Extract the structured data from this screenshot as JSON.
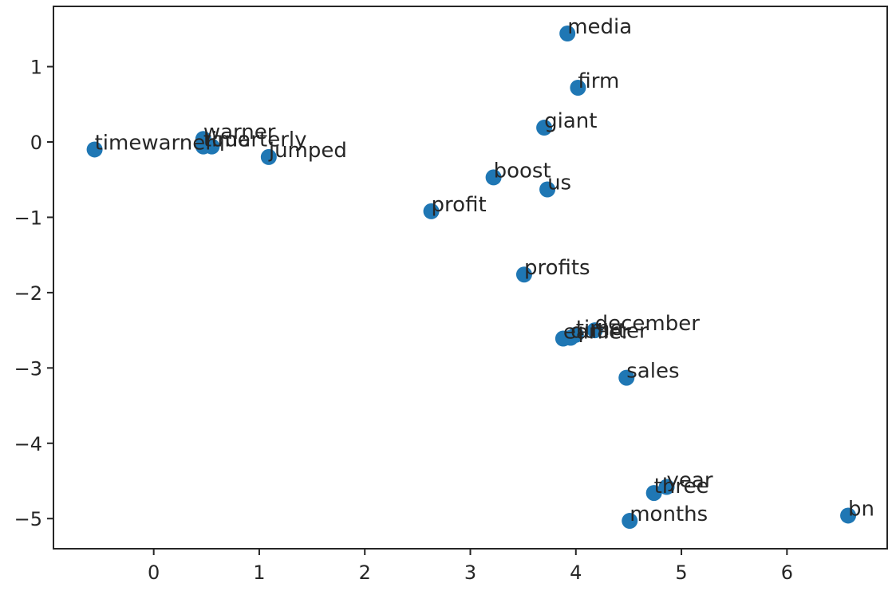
{
  "chart_data": {
    "type": "scatter",
    "title": "",
    "xlabel": "",
    "ylabel": "",
    "xlim": [
      -0.95,
      6.95
    ],
    "ylim": [
      -5.4,
      1.8
    ],
    "x_ticks": [
      0,
      1,
      2,
      3,
      4,
      5,
      6
    ],
    "y_ticks": [
      1,
      0,
      -1,
      -2,
      -3,
      -4,
      -5
    ],
    "x_tick_labels": [
      "0",
      "1",
      "2",
      "3",
      "4",
      "5",
      "6"
    ],
    "y_tick_labels": [
      "1",
      "0",
      "−1",
      "−2",
      "−3",
      "−4",
      "−5"
    ],
    "grid": false,
    "marker_color": "#1f77b4",
    "points": [
      {
        "label": "media",
        "x": 3.92,
        "y": 1.44
      },
      {
        "label": "firm",
        "x": 4.02,
        "y": 0.72
      },
      {
        "label": "giant",
        "x": 3.7,
        "y": 0.19
      },
      {
        "label": "timewarner",
        "x": -0.56,
        "y": -0.1
      },
      {
        "label": "warner",
        "x": 0.47,
        "y": 0.04
      },
      {
        "label": "time",
        "x": 0.47,
        "y": -0.06
      },
      {
        "label": "quarterly",
        "x": 0.55,
        "y": -0.06
      },
      {
        "label": "jumped",
        "x": 1.09,
        "y": -0.2
      },
      {
        "label": "boost",
        "x": 3.22,
        "y": -0.47
      },
      {
        "label": "us",
        "x": 3.73,
        "y": -0.63
      },
      {
        "label": "profit",
        "x": 2.63,
        "y": -0.92
      },
      {
        "label": "profits",
        "x": 3.51,
        "y": -1.76
      },
      {
        "label": "december",
        "x": 4.18,
        "y": -2.5
      },
      {
        "label": "time",
        "x": 4.0,
        "y": -2.56
      },
      {
        "label": "quarter",
        "x": 3.95,
        "y": -2.6
      },
      {
        "label": "earlier",
        "x": 3.88,
        "y": -2.61
      },
      {
        "label": "sales",
        "x": 4.48,
        "y": -3.13
      },
      {
        "label": "year",
        "x": 4.86,
        "y": -4.58
      },
      {
        "label": "three",
        "x": 4.74,
        "y": -4.66
      },
      {
        "label": "months",
        "x": 4.51,
        "y": -5.03
      },
      {
        "label": "bn",
        "x": 6.58,
        "y": -4.96
      }
    ]
  }
}
